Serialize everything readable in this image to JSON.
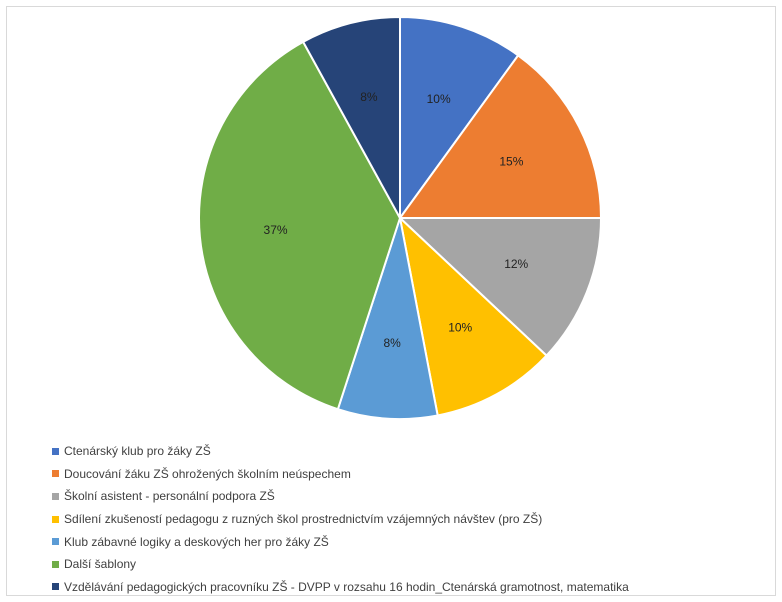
{
  "chart_data": {
    "type": "pie",
    "slices": [
      {
        "label": "Ctenárský klub pro žáky ZŠ",
        "value": 10,
        "value_label": "10%",
        "color": "#4472c4"
      },
      {
        "label": "Doucování žáku ZŠ ohrožených školním neúspechem",
        "value": 15,
        "value_label": "15%",
        "color": "#ed7d31"
      },
      {
        "label": "Školní asistent - personální podpora ZŠ",
        "value": 12,
        "value_label": "12%",
        "color": "#a5a5a5"
      },
      {
        "label": "Sdílení zkušeností pedagogu z ruzných škol prostrednictvím vzájemných návštev (pro ZŠ)",
        "value": 10,
        "value_label": "10%",
        "color": "#ffc000"
      },
      {
        "label": "Klub zábavné logiky a deskových her pro žáky ZŠ",
        "value": 8,
        "value_label": "8%",
        "color": "#5b9bd5"
      },
      {
        "label": "Další šablony",
        "value": 37,
        "value_label": "37%",
        "color": "#70ad47"
      },
      {
        "label": "Vzdělávání pedagogických pracovníku ZŠ - DVPP v rozsahu 16 hodin_Ctenárská gramotnost, matematika",
        "value": 8,
        "value_label": "8%",
        "color": "#264478"
      }
    ],
    "legend_position": "bottom-left",
    "start_angle": "12 o'clock",
    "direction": "clockwise"
  }
}
